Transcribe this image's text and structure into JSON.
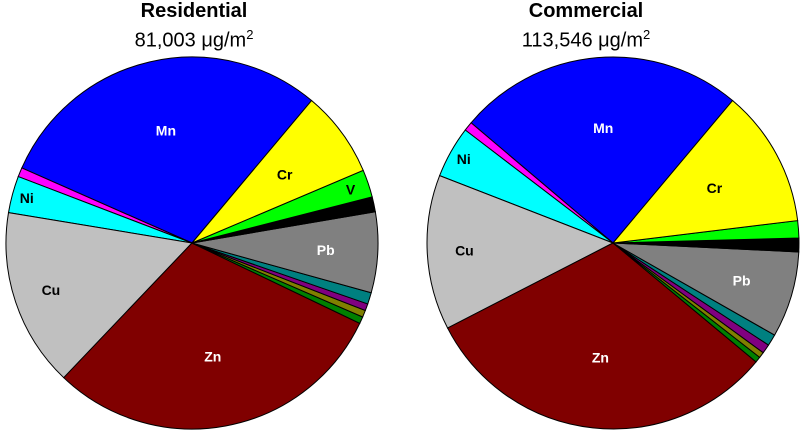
{
  "chart_data": [
    {
      "type": "pie",
      "title": "Residential",
      "subtitle_value": "81,003",
      "subtitle_unit": "μg/m",
      "subtitle_exp": "2",
      "slices": [
        {
          "label": "Mn",
          "value": 29.5,
          "color": "#0000ff",
          "label_color": "#ffffff"
        },
        {
          "label": "",
          "value": 0.8,
          "color": "#ff00ff",
          "label_color": "#000000"
        },
        {
          "label": "Ni",
          "value": 3.2,
          "color": "#00ffff",
          "label_color": "#000000"
        },
        {
          "label": "Cu",
          "value": 15.5,
          "color": "#c0c0c0",
          "label_color": "#000000"
        },
        {
          "label": "Zn",
          "value": 30.0,
          "color": "#800000",
          "label_color": "#ffffff"
        },
        {
          "label": "",
          "value": 0.6,
          "color": "#008000",
          "label_color": "#000000"
        },
        {
          "label": "",
          "value": 0.6,
          "color": "#808000",
          "label_color": "#000000"
        },
        {
          "label": "",
          "value": 0.6,
          "color": "#800080",
          "label_color": "#000000"
        },
        {
          "label": "",
          "value": 1.0,
          "color": "#008080",
          "label_color": "#000000"
        },
        {
          "label": "Pb",
          "value": 7.0,
          "color": "#808080",
          "label_color": "#ffffff"
        },
        {
          "label": "",
          "value": 1.3,
          "color": "#000000",
          "label_color": "#000000"
        },
        {
          "label": "V",
          "value": 2.4,
          "color": "#00ff00",
          "label_color": "#000000"
        },
        {
          "label": "Cr",
          "value": 7.5,
          "color": "#ffff00",
          "label_color": "#000000"
        }
      ]
    },
    {
      "type": "pie",
      "title": "Commercial",
      "subtitle_value": "113,546",
      "subtitle_unit": "μg/m",
      "subtitle_exp": "2",
      "slices": [
        {
          "label": "Mn",
          "value": 25.0,
          "color": "#0000ff",
          "label_color": "#ffffff"
        },
        {
          "label": "",
          "value": 0.8,
          "color": "#ff00ff",
          "label_color": "#000000"
        },
        {
          "label": "Ni",
          "value": 4.5,
          "color": "#00ffff",
          "label_color": "#000000"
        },
        {
          "label": "Cu",
          "value": 13.5,
          "color": "#c0c0c0",
          "label_color": "#000000"
        },
        {
          "label": "Zn",
          "value": 31.5,
          "color": "#800000",
          "label_color": "#ffffff"
        },
        {
          "label": "",
          "value": 0.5,
          "color": "#008000",
          "label_color": "#000000"
        },
        {
          "label": "",
          "value": 0.5,
          "color": "#808000",
          "label_color": "#000000"
        },
        {
          "label": "",
          "value": 0.8,
          "color": "#800080",
          "label_color": "#000000"
        },
        {
          "label": "",
          "value": 1.0,
          "color": "#008080",
          "label_color": "#000000"
        },
        {
          "label": "Pb",
          "value": 7.5,
          "color": "#808080",
          "label_color": "#ffffff"
        },
        {
          "label": "",
          "value": 1.2,
          "color": "#000000",
          "label_color": "#000000"
        },
        {
          "label": "",
          "value": 1.5,
          "color": "#00ff00",
          "label_color": "#000000"
        },
        {
          "label": "Cr",
          "value": 12.0,
          "color": "#ffff00",
          "label_color": "#000000"
        }
      ]
    }
  ]
}
